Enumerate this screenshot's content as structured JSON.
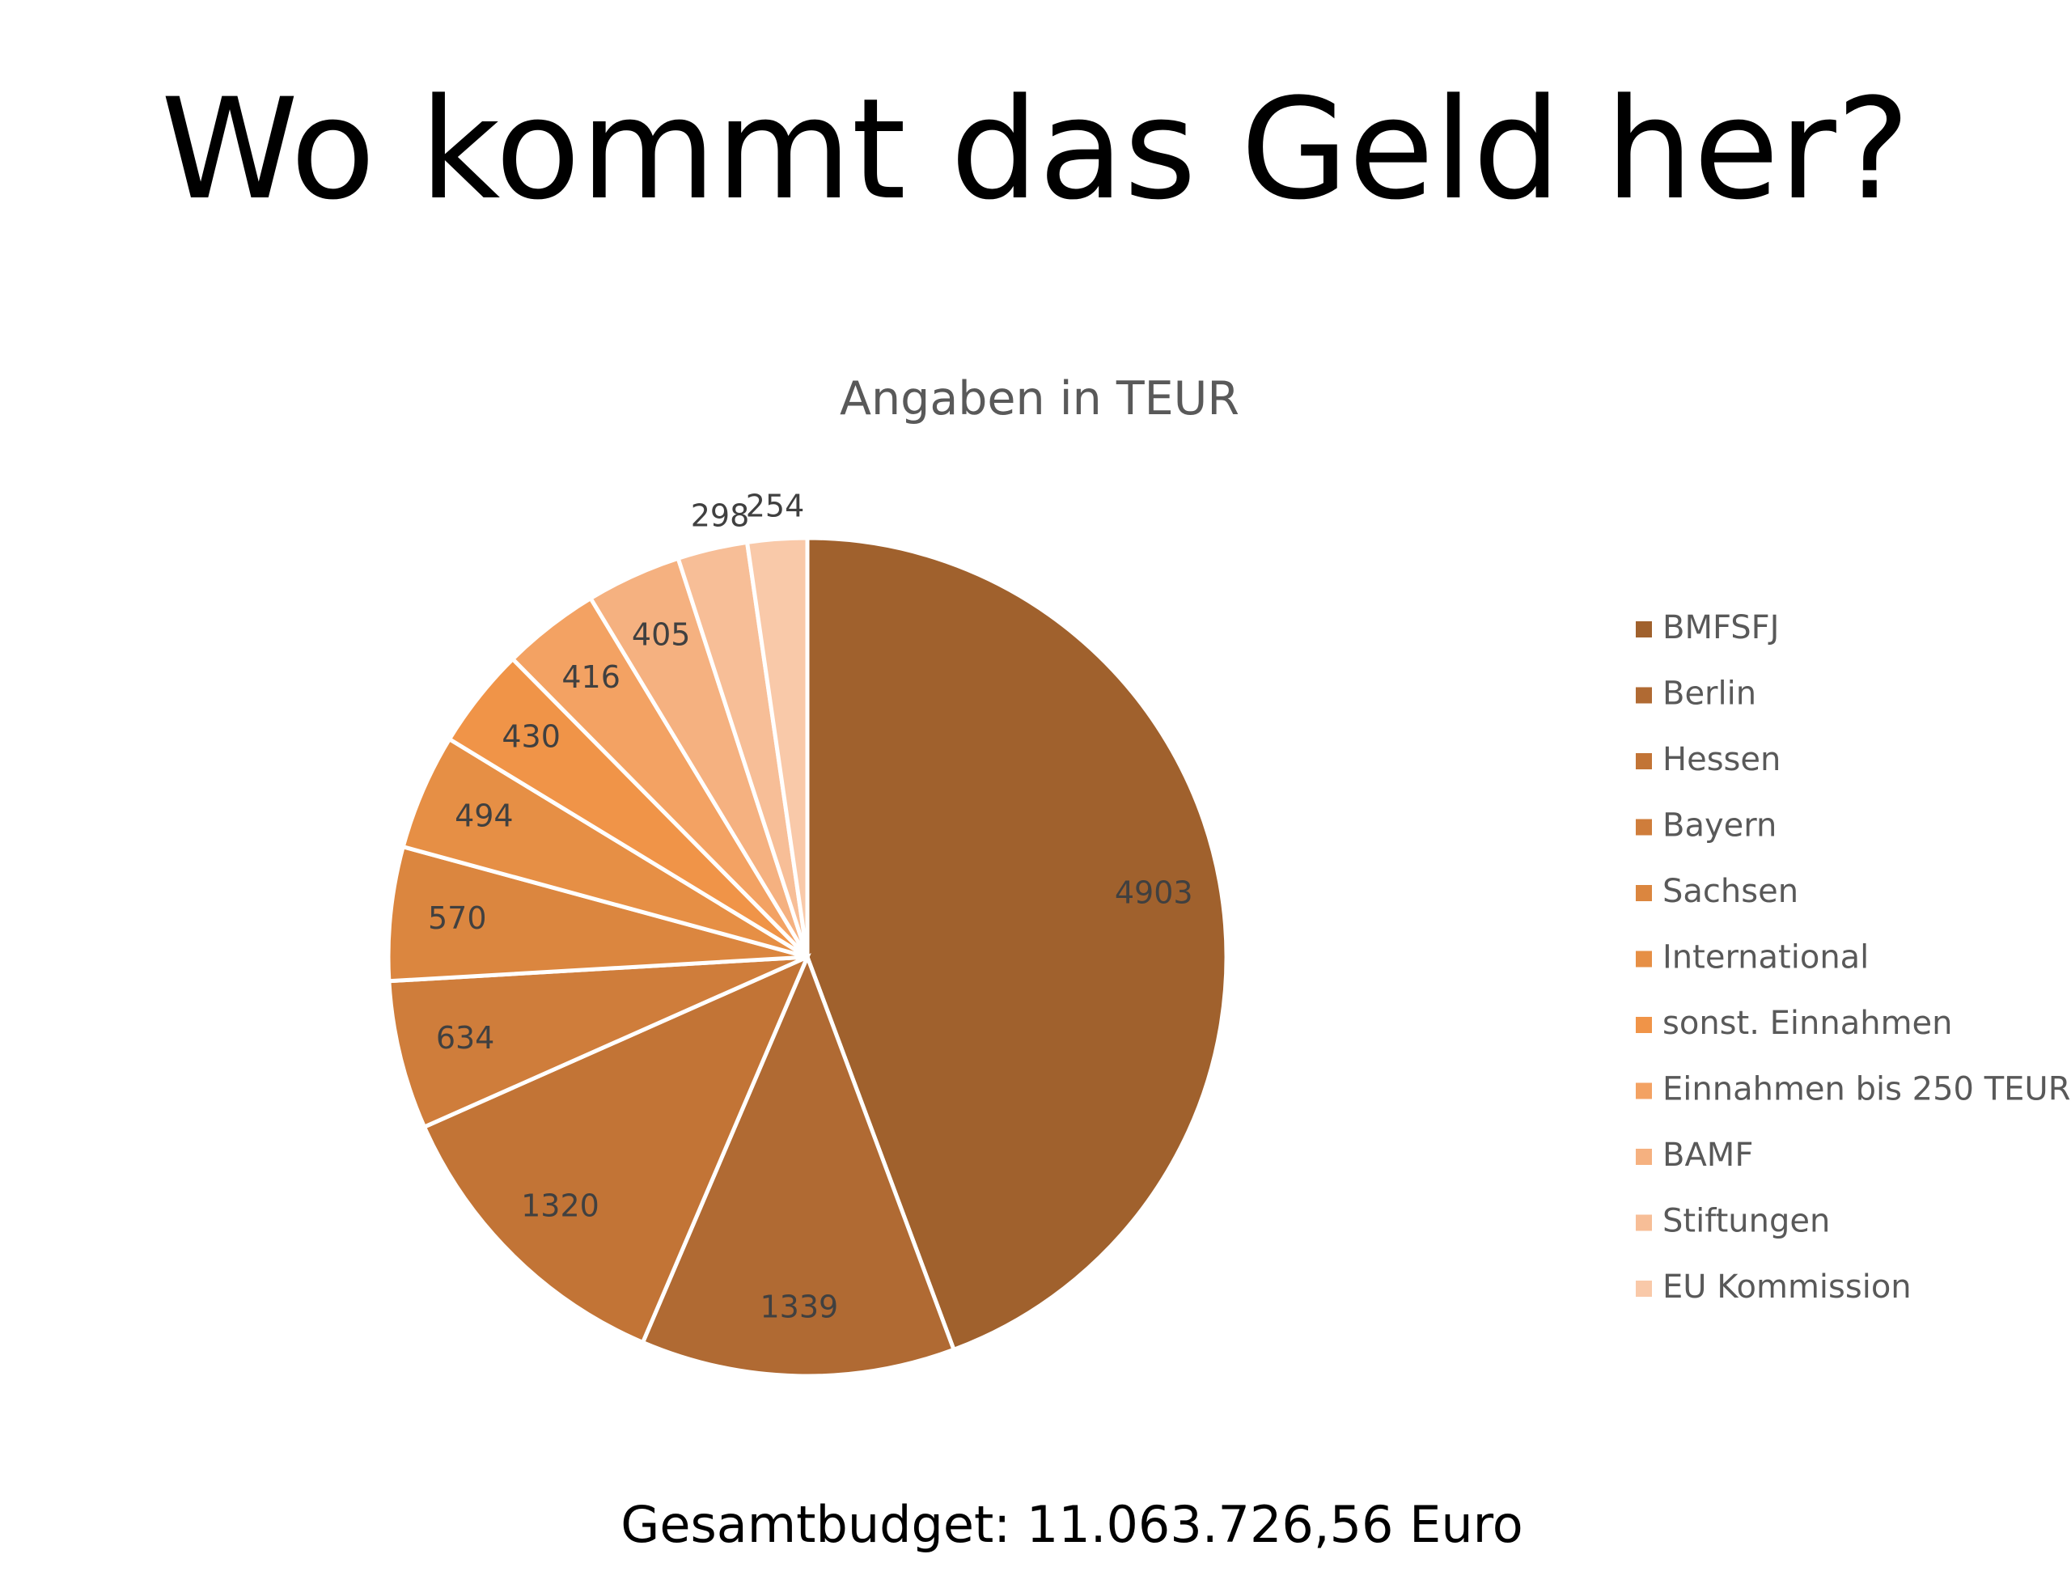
{
  "slide": {
    "title": "Wo kommt das Geld her?",
    "footer": "Gesamtbudget: 11.063.726,56 Euro"
  },
  "chart_data": {
    "type": "pie",
    "title": "Angaben in TEUR",
    "legend_position": "right",
    "categories": [
      "BMFSFJ",
      "Berlin",
      "Hessen",
      "Bayern",
      "Sachsen",
      "International",
      "sonst. Einnahmen",
      "Einnahmen bis 250 TEUR",
      "BAMF",
      "Stiftungen",
      "EU Kommission"
    ],
    "values": [
      4903,
      1339,
      1320,
      634,
      570,
      494,
      430,
      416,
      405,
      298,
      254
    ],
    "colors": [
      "#A0612D",
      "#B06A33",
      "#C27436",
      "#CF7D3B",
      "#DB863F",
      "#E68F45",
      "#F09448",
      "#F3A263",
      "#F5B180",
      "#F7BE97",
      "#F9C9A9"
    ]
  }
}
